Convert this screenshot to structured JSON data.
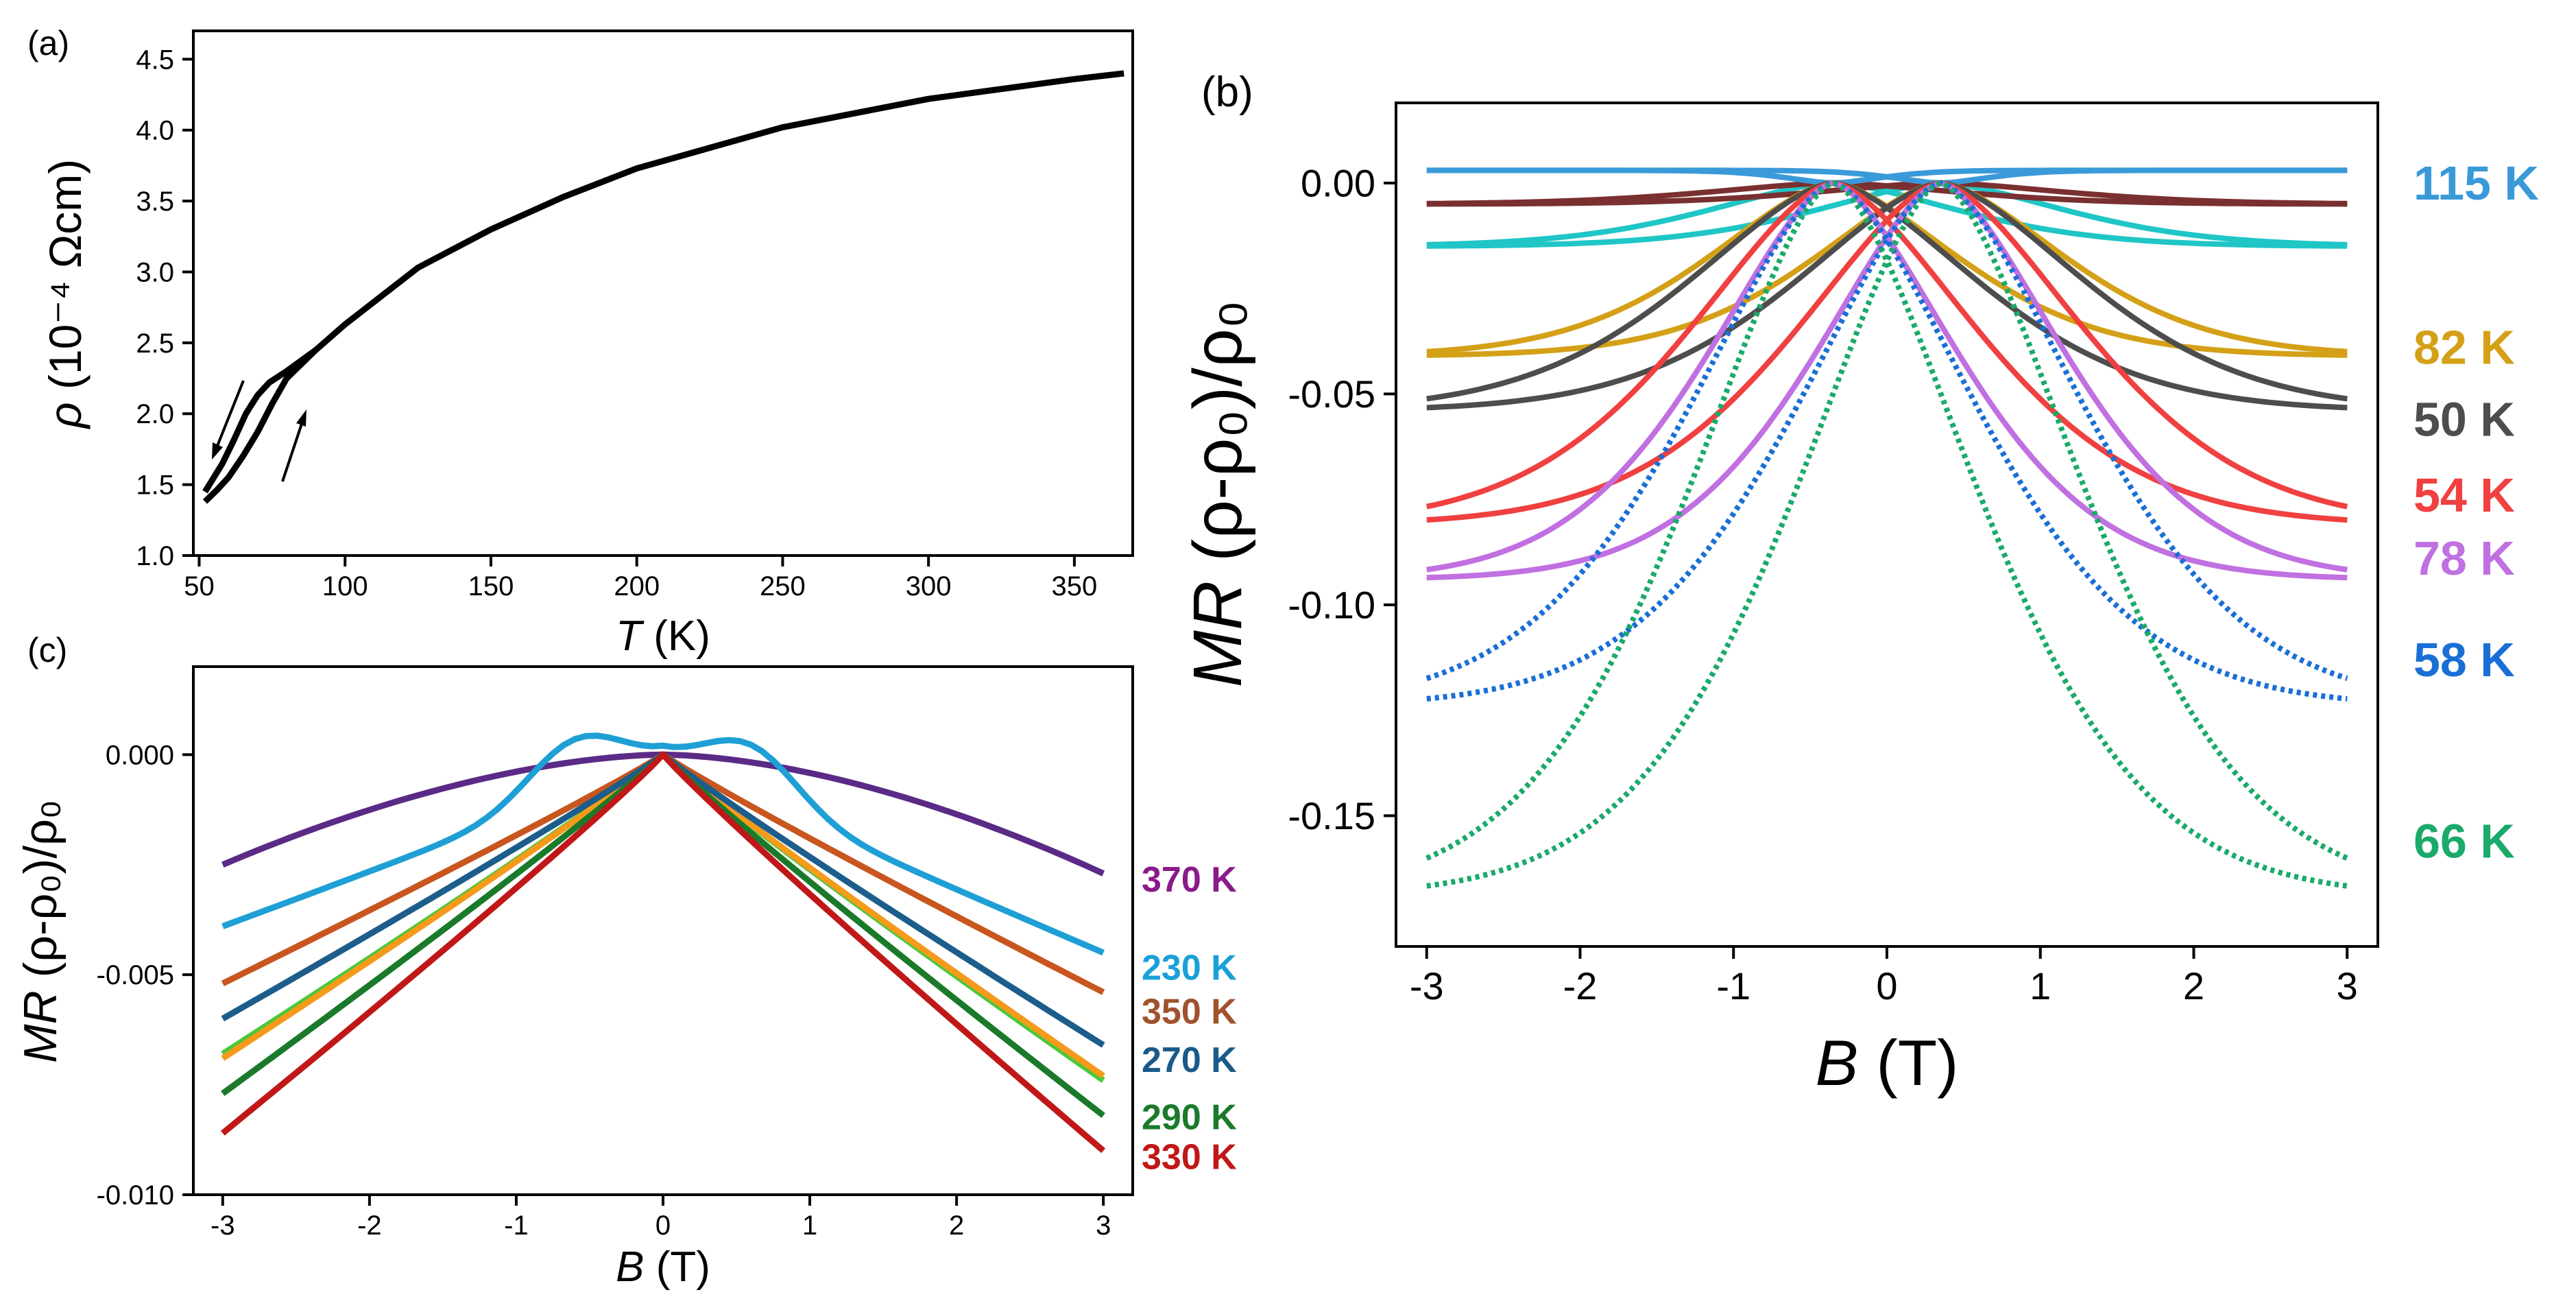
{
  "chart_data": [
    {
      "panel": "(a)",
      "type": "line",
      "xlabel_italic": "T",
      "xlabel_unit": "(K)",
      "ylabel_symbol": "ρ",
      "ylabel_unit": "(10⁻⁴ Ωcm)",
      "xlim": [
        48,
        370
      ],
      "ylim": [
        1.0,
        4.7
      ],
      "xticks": [
        "50",
        "100",
        "150",
        "200",
        "250",
        "300",
        "350"
      ],
      "yticks": [
        "1.0",
        "1.5",
        "2.0",
        "2.5",
        "3.0",
        "3.5",
        "4.0",
        "4.5"
      ],
      "series": [
        {
          "name": "heating",
          "color": "#000000",
          "x": [
            52,
            56,
            60,
            65,
            70,
            75,
            80,
            90,
            100,
            125,
            150,
            175,
            200,
            250,
            300,
            350,
            367
          ],
          "y": [
            1.38,
            1.46,
            1.55,
            1.7,
            1.87,
            2.07,
            2.25,
            2.45,
            2.63,
            3.03,
            3.3,
            3.53,
            3.73,
            4.02,
            4.22,
            4.36,
            4.4
          ]
        },
        {
          "name": "cooling",
          "color": "#000000",
          "x": [
            52,
            55,
            58,
            62,
            66,
            70,
            74,
            80,
            90
          ],
          "y": [
            1.45,
            1.55,
            1.65,
            1.82,
            2.0,
            2.13,
            2.22,
            2.3,
            2.45
          ]
        }
      ],
      "annotations": [
        "cooling arrow (down)",
        "heating arrow (up)"
      ]
    },
    {
      "panel": "(b)",
      "type": "scatter",
      "xlabel_italic": "B",
      "xlabel_unit": "(T)",
      "ylabel_italic": "MR",
      "ylabel_rest": "(ρ-ρ₀)/ρ₀",
      "xlim": [
        -3.2,
        3.2
      ],
      "ylim": [
        -0.181,
        0.019
      ],
      "xticks": [
        "-3",
        "-2",
        "-1",
        "0",
        "1",
        "2",
        "3"
      ],
      "yticks": [
        "0.00",
        "-0.05",
        "-0.10",
        "-0.15"
      ],
      "series": [
        {
          "name": "115 K",
          "color": "#3a9ad9",
          "sat": 0.003,
          "peak": 0.003,
          "width": 1.0
        },
        {
          "name": "82 K",
          "color": "#d4a017",
          "sat": -0.041,
          "peak": 0.0,
          "width": 2.6
        },
        {
          "name": "50 K",
          "color": "#4d4d4d",
          "sat": -0.054,
          "peak": 0.0,
          "width": 3.0
        },
        {
          "name": "54 K",
          "color": "#f04040",
          "sat": -0.081,
          "peak": 0.0,
          "width": 3.0
        },
        {
          "name": "78 K",
          "color": "#c070e0",
          "sat": -0.094,
          "peak": 0.0,
          "width": 2.6
        },
        {
          "name": "58 K",
          "color": "#1a6fd6",
          "sat": -0.124,
          "peak": 0.0,
          "width": 3.0
        },
        {
          "name": "66 K",
          "color": "#1aaa6a",
          "sat": -0.169,
          "peak": 0.0,
          "width": 3.0
        }
      ],
      "extra_series": [
        {
          "name": "teal",
          "color": "#20c6c6",
          "sat": -0.015
        },
        {
          "name": "brown",
          "color": "#7a3030",
          "sat": -0.005
        }
      ]
    },
    {
      "panel": "(c)",
      "type": "line",
      "xlabel_italic": "B",
      "xlabel_unit": "(T)",
      "ylabel_italic": "MR",
      "ylabel_rest": "(ρ-ρ₀)/ρ₀",
      "xlim": [
        -3.2,
        3.2
      ],
      "ylim": [
        -0.01,
        0.002
      ],
      "xticks": [
        "-3",
        "-2",
        "-1",
        "0",
        "1",
        "2",
        "3"
      ],
      "yticks": [
        "0.000",
        "-0.005",
        "-0.010"
      ],
      "series": [
        {
          "name": "370 K",
          "color": "#8a1a8a",
          "line_color": "#5b2a86",
          "left": -0.0025,
          "right": -0.0027
        },
        {
          "name": "230 K",
          "color": "#1aa0d8",
          "line_color": "#1e9fd5",
          "left": -0.0039,
          "right": -0.0045
        },
        {
          "name": "350 K",
          "color": "#a0522d",
          "line_color": "#c8561e",
          "left": -0.0052,
          "right": -0.0054
        },
        {
          "name": "270 K",
          "color": "#1a5a8a",
          "line_color": "#1c5d8c",
          "left": -0.006,
          "right": -0.0066
        },
        {
          "name": "290 K",
          "color": "#1a7a2a",
          "line_color": "#1a7a2a",
          "left": -0.0077,
          "right": -0.0082
        },
        {
          "name": "330 K",
          "color": "#c01818",
          "line_color": "#c01818",
          "left": -0.0086,
          "right": -0.009
        }
      ],
      "extra_series": [
        {
          "name": "light green",
          "color": "#4ac83a",
          "left": -0.0068,
          "right": -0.0074
        },
        {
          "name": "orange",
          "color": "#f59a1a",
          "left": -0.0069,
          "right": -0.0073
        }
      ]
    }
  ]
}
